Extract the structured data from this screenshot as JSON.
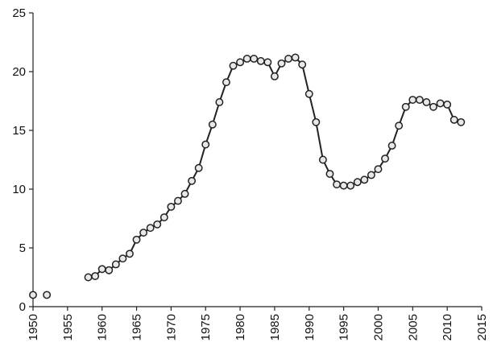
{
  "chart_data": {
    "type": "line",
    "x": [
      1950,
      1951,
      1952,
      1953,
      1954,
      1955,
      1956,
      1957,
      1958,
      1959,
      1960,
      1961,
      1962,
      1963,
      1964,
      1965,
      1966,
      1967,
      1968,
      1969,
      1970,
      1971,
      1972,
      1973,
      1974,
      1975,
      1976,
      1977,
      1978,
      1979,
      1980,
      1981,
      1982,
      1983,
      1984,
      1985,
      1986,
      1987,
      1988,
      1989,
      1990,
      1991,
      1992,
      1993,
      1994,
      1995,
      1996,
      1997,
      1998,
      1999,
      2000,
      2001,
      2002,
      2003,
      2004,
      2005,
      2006,
      2007,
      2008,
      2009,
      2010,
      2011,
      2012
    ],
    "values": [
      1.0,
      null,
      1.0,
      null,
      null,
      null,
      null,
      null,
      2.5,
      2.6,
      3.2,
      3.1,
      3.6,
      4.1,
      4.5,
      5.7,
      6.3,
      6.7,
      7.0,
      7.6,
      8.5,
      9.0,
      9.6,
      10.7,
      11.8,
      13.8,
      15.5,
      17.4,
      19.1,
      20.5,
      20.8,
      21.1,
      21.1,
      20.9,
      20.8,
      19.6,
      20.7,
      21.1,
      21.2,
      20.6,
      18.1,
      15.7,
      12.5,
      11.3,
      10.4,
      10.3,
      10.3,
      10.6,
      10.8,
      11.2,
      11.7,
      12.6,
      13.7,
      15.4,
      17.0,
      17.6,
      17.6,
      17.4,
      17.0,
      17.3,
      17.2,
      15.9,
      15.7
    ],
    "color": "#222222",
    "xlim": [
      1950,
      2015
    ],
    "xticks": [
      1950,
      1955,
      1960,
      1965,
      1970,
      1975,
      1980,
      1985,
      1990,
      1995,
      2000,
      2005,
      2010,
      2015
    ],
    "ylim": [
      0,
      25
    ],
    "yticks": [
      0,
      5,
      10,
      15,
      20,
      25
    ],
    "grid": false
  }
}
